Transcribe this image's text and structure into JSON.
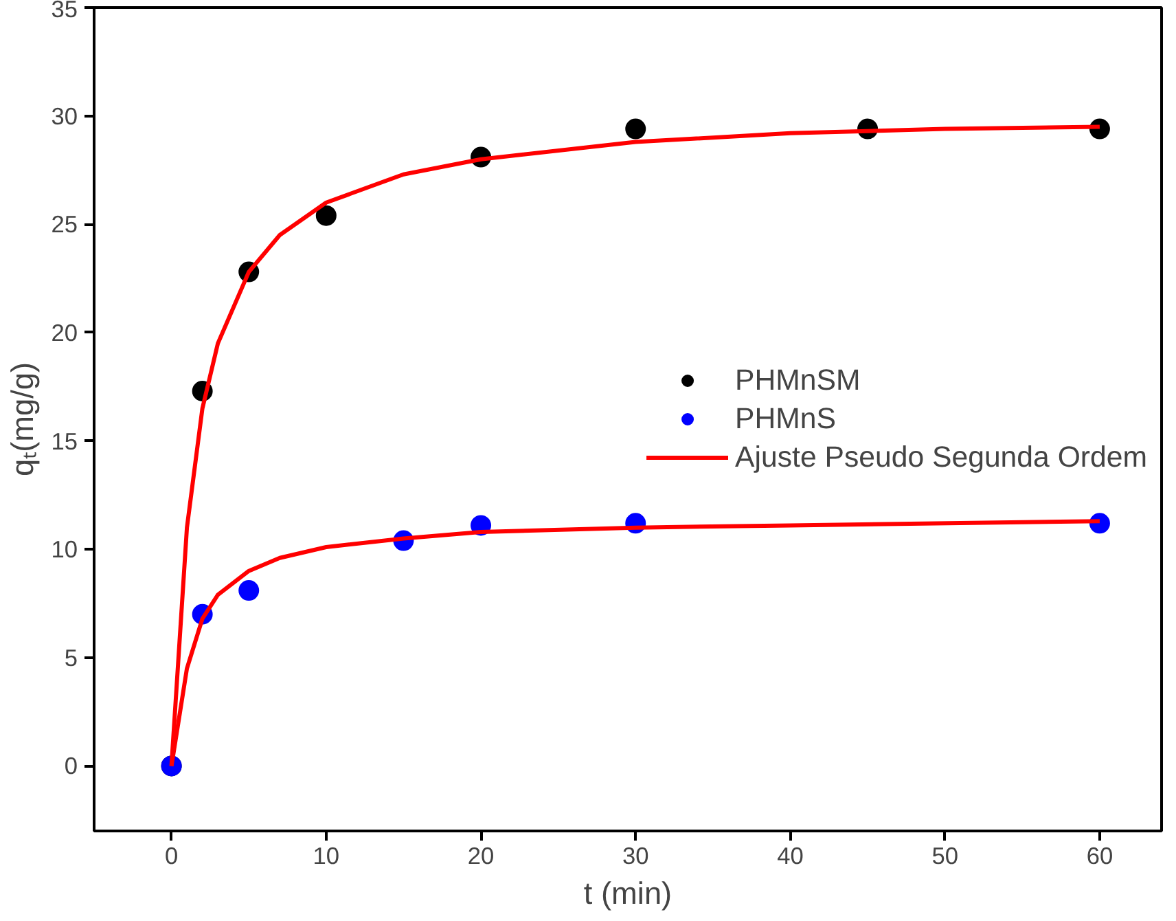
{
  "chart_data": {
    "type": "scatter",
    "xlabel": "t (min)",
    "ylabel": "qₜ(mg/g)",
    "xlim": [
      -5,
      64
    ],
    "ylim": [
      -3,
      35
    ],
    "xticks": [
      0,
      10,
      20,
      30,
      40,
      50,
      60
    ],
    "yticks": [
      0,
      5,
      10,
      15,
      20,
      25,
      30,
      35
    ],
    "grid": false,
    "legend": "right",
    "marker": "circle",
    "series": [
      {
        "name": "PHMnSM",
        "color": "#000000",
        "x": [
          0,
          2,
          5,
          10,
          20,
          30,
          45,
          60
        ],
        "values": [
          0,
          17.3,
          22.8,
          25.4,
          28.1,
          29.4,
          29.4,
          29.4
        ]
      },
      {
        "name": "PHMnS",
        "color": "#0000ff",
        "x": [
          0,
          2,
          5,
          15,
          20,
          30,
          60
        ],
        "values": [
          0,
          7.0,
          8.1,
          10.4,
          11.1,
          11.2,
          11.2
        ]
      },
      {
        "name": "Ajuste Pseudo Segunda Ordem",
        "type": "line",
        "marker": "none",
        "line_style": "solid",
        "color": "#ff0000",
        "x": [
          0,
          1,
          2,
          3,
          5,
          7,
          10,
          15,
          20,
          30,
          40,
          50,
          60
        ],
        "values": [
          0,
          11,
          16.5,
          19.5,
          22.8,
          24.5,
          26,
          27.3,
          28,
          28.8,
          29.2,
          29.4,
          29.5
        ]
      },
      {
        "type": "line",
        "marker": "none",
        "line_style": "solid",
        "color": "#ff0000",
        "x": [
          0,
          1,
          2,
          3,
          5,
          7,
          10,
          15,
          20,
          30,
          40,
          60
        ],
        "values": [
          0,
          4.5,
          6.8,
          7.9,
          9,
          9.6,
          10.1,
          10.5,
          10.8,
          11,
          11.1,
          11.3
        ]
      }
    ]
  }
}
